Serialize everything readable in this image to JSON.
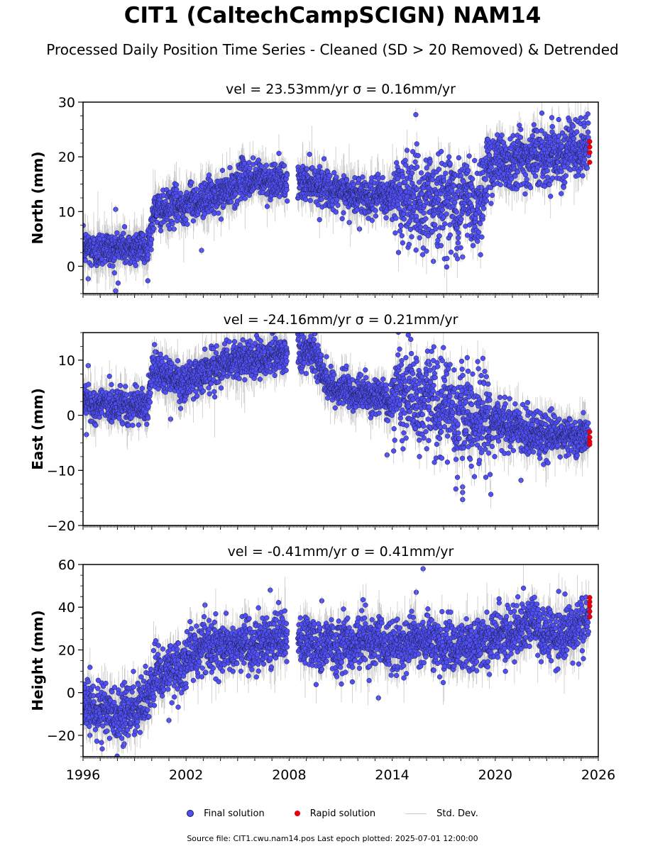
{
  "title": "CIT1 (CaltechCampSCIGN) NAM14",
  "subtitle": "Processed Daily Position Time Series - Cleaned (SD > 20 Removed) & Detrended",
  "legend": {
    "final": "Final solution",
    "rapid": "Rapid solution",
    "std": "Std. Dev."
  },
  "footer": "Source file: CIT1.cwu.nam14.pos  Last epoch plotted: 2025-07-01 12:00:00",
  "colors": {
    "final": "#4f4ff5",
    "rapid": "#e8000b",
    "std": "#9a9a9a",
    "marker_edge": "#1c1c40"
  },
  "chart_data": [
    {
      "type": "scatter",
      "panel": "north",
      "title": "vel = 23.53mm/yr   σ = 0.16mm/yr",
      "ylabel": "North (mm)",
      "xlim": [
        1996,
        2026
      ],
      "ylim": [
        -5,
        30
      ],
      "yticks": [
        0,
        10,
        20,
        30
      ],
      "xticks": [
        1996,
        2002,
        2008,
        2014,
        2020,
        2026
      ],
      "data_gap": [
        2007.9,
        2008.5
      ],
      "trend_points": [
        [
          1996,
          3
        ],
        [
          1999.7,
          3.5
        ],
        [
          2000.2,
          10
        ],
        [
          2004.5,
          13.5
        ],
        [
          2005.2,
          16
        ],
        [
          2007.9,
          15.5
        ],
        [
          2008.6,
          15.5
        ],
        [
          2010,
          15
        ],
        [
          2010.5,
          13.5
        ],
        [
          2013.3,
          12.5
        ],
        [
          2014.5,
          12.8
        ],
        [
          2019.2,
          11.5
        ],
        [
          2019.6,
          19
        ],
        [
          2025.6,
          21.5
        ]
      ],
      "scatter_sd": [
        [
          1996,
          1.6
        ],
        [
          2014,
          1.6
        ],
        [
          2014.1,
          4.2
        ],
        [
          2019.5,
          4.2
        ],
        [
          2019.6,
          2.6
        ],
        [
          2026,
          2.6
        ]
      ],
      "outliers": [
        [
          1997.9,
          10.4
        ],
        [
          1997.9,
          -4.5
        ],
        [
          1996.3,
          -2.3
        ],
        [
          2001.3,
          6.8
        ],
        [
          2002.9,
          2.9
        ],
        [
          2005.9,
          19.8
        ],
        [
          2011.5,
          8.0
        ],
        [
          2012.1,
          6.8
        ],
        [
          2016.4,
          0.9
        ],
        [
          2017.7,
          2.0
        ],
        [
          2018.1,
          1.7
        ],
        [
          2019.2,
          14.4
        ]
      ],
      "rapid": [
        [
          2025.5,
          22.8
        ],
        [
          2025.5,
          21.8
        ],
        [
          2025.5,
          20.8
        ],
        [
          2025.5,
          19.0
        ]
      ]
    },
    {
      "type": "scatter",
      "panel": "east",
      "title": "vel = -24.16mm/yr   σ = 0.21mm/yr",
      "ylabel": "East (mm)",
      "xlim": [
        1996,
        2026
      ],
      "ylim": [
        -20,
        15
      ],
      "yticks": [
        -20,
        -10,
        0,
        10
      ],
      "xticks": [
        1996,
        2002,
        2008,
        2014,
        2020,
        2026
      ],
      "data_gap": [
        2007.9,
        2008.5
      ],
      "trend_points": [
        [
          1996,
          2.5
        ],
        [
          1998,
          1.5
        ],
        [
          1999.7,
          1.5
        ],
        [
          2000,
          8
        ],
        [
          2000.9,
          7
        ],
        [
          2002,
          6
        ],
        [
          2003.5,
          8.5
        ],
        [
          2005,
          10
        ],
        [
          2007.9,
          11
        ],
        [
          2008.5,
          12
        ],
        [
          2009.7,
          11
        ],
        [
          2010,
          6
        ],
        [
          2011.5,
          4.5
        ],
        [
          2013.9,
          2.5
        ],
        [
          2014.1,
          4.5
        ],
        [
          2016,
          3
        ],
        [
          2018,
          0
        ],
        [
          2020.5,
          -1.5
        ],
        [
          2022.5,
          -3.5
        ],
        [
          2025.6,
          -4
        ]
      ],
      "scatter_sd": [
        [
          1996,
          1.6
        ],
        [
          2014,
          1.6
        ],
        [
          2014.1,
          4.0
        ],
        [
          2019.8,
          4.0
        ],
        [
          2019.9,
          2.2
        ],
        [
          2026,
          1.6
        ]
      ],
      "outliers": [
        [
          1996.3,
          9.0
        ],
        [
          1996.2,
          -3.5
        ],
        [
          2000.2,
          11.5
        ],
        [
          2001.1,
          -0.7
        ],
        [
          2009.5,
          14.8
        ],
        [
          2016.1,
          9.8
        ],
        [
          2018.1,
          -15.3
        ],
        [
          2018.1,
          -13.0
        ],
        [
          2018.1,
          -14.0
        ],
        [
          2021.5,
          -11.8
        ],
        [
          2013.7,
          -7.2
        ]
      ],
      "rapid": [
        [
          2025.5,
          -3.0
        ],
        [
          2025.5,
          -4.0
        ],
        [
          2025.5,
          -4.8
        ],
        [
          2025.5,
          -5.3
        ]
      ]
    },
    {
      "type": "scatter",
      "panel": "up",
      "title": "vel = -0.41mm/yr   σ = 0.41mm/yr",
      "ylabel": "Height (mm)",
      "xlim": [
        1996,
        2026
      ],
      "ylim": [
        -30,
        60
      ],
      "yticks": [
        -20,
        0,
        20,
        40,
        60
      ],
      "xticks": [
        1996,
        2002,
        2008,
        2014,
        2020,
        2026
      ],
      "data_gap": [
        2007.9,
        2008.5
      ],
      "trend_points": [
        [
          1996,
          -5
        ],
        [
          1998,
          -10
        ],
        [
          1999.2,
          -8
        ],
        [
          2000.3,
          8
        ],
        [
          2001.5,
          12
        ],
        [
          2003,
          22
        ],
        [
          2005,
          22
        ],
        [
          2007.9,
          26
        ],
        [
          2008.6,
          25
        ],
        [
          2010,
          22
        ],
        [
          2012,
          24
        ],
        [
          2014,
          22
        ],
        [
          2016,
          25
        ],
        [
          2018,
          20
        ],
        [
          2020,
          25
        ],
        [
          2022,
          32
        ],
        [
          2023.5,
          25
        ],
        [
          2025.6,
          33
        ]
      ],
      "scatter_sd": [
        [
          1996,
          6.0
        ],
        [
          2026,
          6.0
        ]
      ],
      "outliers": [
        [
          2006.9,
          48.0
        ],
        [
          2015.8,
          58.0
        ],
        [
          2015.4,
          47.0
        ],
        [
          2003.1,
          41.0
        ],
        [
          2009.9,
          43.0
        ],
        [
          2013.2,
          -2.5
        ],
        [
          1998.4,
          -24.0
        ],
        [
          2001.0,
          -13.0
        ],
        [
          1996.4,
          -20.0
        ]
      ],
      "rapid": [
        [
          2025.5,
          44.5
        ],
        [
          2025.5,
          42.5
        ],
        [
          2025.5,
          40.5
        ],
        [
          2025.5,
          38.0
        ],
        [
          2025.5,
          35.5
        ]
      ]
    }
  ]
}
